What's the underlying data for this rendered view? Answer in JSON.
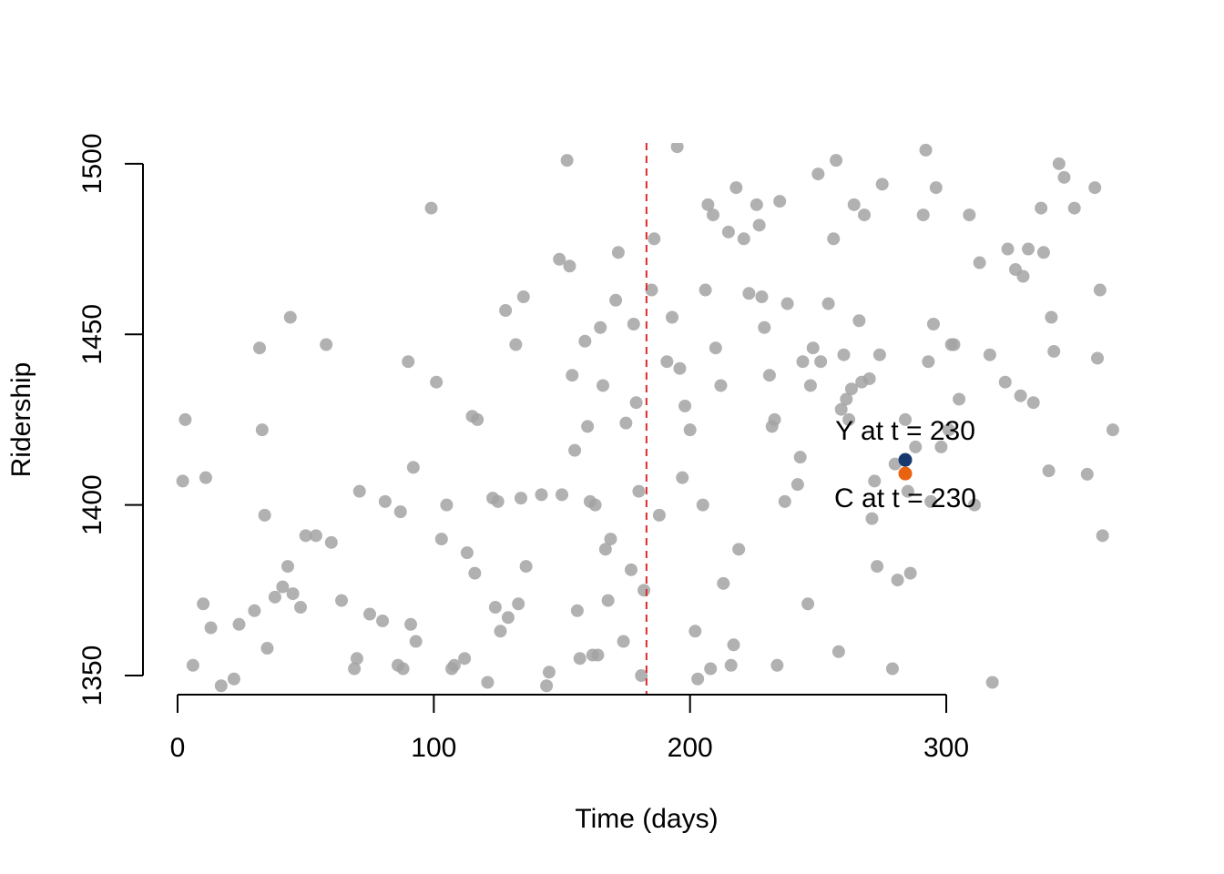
{
  "chart_data": {
    "type": "scatter",
    "x_label": "Time (days)",
    "y_label": "Ridership",
    "xlim": [
      -13.5,
      379.6
    ],
    "ylim": [
      1344.4,
      1506.1
    ],
    "xticks": [
      0,
      100,
      200,
      300
    ],
    "yticks": [
      1350,
      1400,
      1450,
      1500
    ],
    "color": "#a3a3a3",
    "x": [
      2,
      3,
      6,
      10,
      11,
      13,
      17,
      22,
      24,
      30,
      32,
      33,
      34,
      35,
      38,
      41,
      43,
      44,
      45,
      48,
      50,
      54,
      58,
      60,
      64,
      69,
      70,
      71,
      75,
      80,
      81,
      86,
      87,
      88,
      90,
      91,
      92,
      93,
      99,
      101,
      103,
      105,
      107,
      108,
      112,
      113,
      115,
      116,
      117,
      121,
      123,
      124,
      125,
      126,
      128,
      129,
      132,
      133,
      134,
      135,
      136,
      142,
      144,
      145,
      149,
      150,
      152,
      153,
      154,
      155,
      156,
      157,
      159,
      160,
      161,
      162,
      163,
      164,
      165,
      166,
      167,
      168,
      169,
      171,
      172,
      174,
      175,
      177,
      178,
      179,
      180,
      181,
      182,
      185,
      186,
      188,
      191,
      193,
      195,
      196,
      197,
      198,
      200,
      202,
      203,
      205,
      206,
      207,
      208,
      209,
      210,
      212,
      213,
      215,
      216,
      217,
      218,
      219,
      221,
      223,
      226,
      227,
      228,
      229,
      231,
      232,
      233,
      234,
      235,
      237,
      238,
      242,
      243,
      244,
      246,
      247,
      248,
      250,
      251,
      254,
      256,
      257,
      258,
      259,
      260,
      261,
      262,
      263,
      264,
      266,
      267,
      268,
      270,
      271,
      272,
      273,
      274,
      275,
      279,
      280,
      281,
      284,
      285,
      286,
      288,
      291,
      292,
      293,
      294,
      295,
      296,
      298,
      301,
      302,
      303,
      305,
      309,
      311,
      313,
      317,
      318,
      323,
      324,
      327,
      329,
      330,
      332,
      334,
      337,
      338,
      340,
      341,
      342,
      344,
      346,
      350,
      355,
      358,
      359,
      360,
      361,
      365
    ],
    "values": [
      1407,
      1425,
      1353,
      1371,
      1408,
      1364,
      1347,
      1349,
      1365,
      1369,
      1446,
      1422,
      1397,
      1358,
      1373,
      1376,
      1382,
      1455,
      1374,
      1370,
      1391,
      1391,
      1447,
      1389,
      1372,
      1352,
      1355,
      1404,
      1368,
      1366,
      1401,
      1353,
      1398,
      1352,
      1442,
      1365,
      1411,
      1360,
      1487,
      1436,
      1390,
      1400,
      1352,
      1353,
      1355,
      1386,
      1426,
      1380,
      1425,
      1348,
      1402,
      1370,
      1401,
      1363,
      1457,
      1367,
      1447,
      1371,
      1402,
      1461,
      1382,
      1403,
      1347,
      1351,
      1472,
      1403,
      1501,
      1470,
      1438,
      1416,
      1369,
      1355,
      1448,
      1423,
      1401,
      1356,
      1400,
      1356,
      1452,
      1435,
      1387,
      1372,
      1390,
      1460,
      1474,
      1360,
      1424,
      1381,
      1453,
      1430,
      1404,
      1350,
      1375,
      1463,
      1478,
      1397,
      1442,
      1455,
      1505,
      1440,
      1408,
      1429,
      1422,
      1363,
      1349,
      1400,
      1463,
      1488,
      1352,
      1485,
      1446,
      1435,
      1377,
      1480,
      1353,
      1359,
      1493,
      1387,
      1478,
      1462,
      1488,
      1482,
      1461,
      1452,
      1438,
      1423,
      1425,
      1353,
      1489,
      1401,
      1459,
      1406,
      1414,
      1442,
      1371,
      1435,
      1446,
      1497,
      1442,
      1459,
      1478,
      1501,
      1357,
      1428,
      1444,
      1431,
      1425,
      1434,
      1488,
      1454,
      1436,
      1485,
      1437,
      1396,
      1407,
      1382,
      1444,
      1494,
      1352,
      1412,
      1378,
      1425,
      1404,
      1380,
      1417,
      1485,
      1504,
      1442,
      1401,
      1453,
      1493,
      1417,
      1422,
      1447,
      1447,
      1431,
      1485,
      1400,
      1471,
      1444,
      1348,
      1436,
      1475,
      1469,
      1432,
      1467,
      1475,
      1430,
      1487,
      1474,
      1410,
      1455,
      1445,
      1500,
      1496,
      1487,
      1409,
      1493,
      1443,
      1463,
      1391,
      1422
    ],
    "vline": {
      "x": 183,
      "color": "#dd2a2a"
    },
    "annotations": [
      {
        "text": "Y at t = 230",
        "x": 284,
        "y": 1413.2,
        "color": "#163a70",
        "label_position": "above"
      },
      {
        "text": "C at t = 230",
        "x": 284,
        "y": 1409.2,
        "color": "#e8620f",
        "label_position": "below"
      }
    ]
  }
}
